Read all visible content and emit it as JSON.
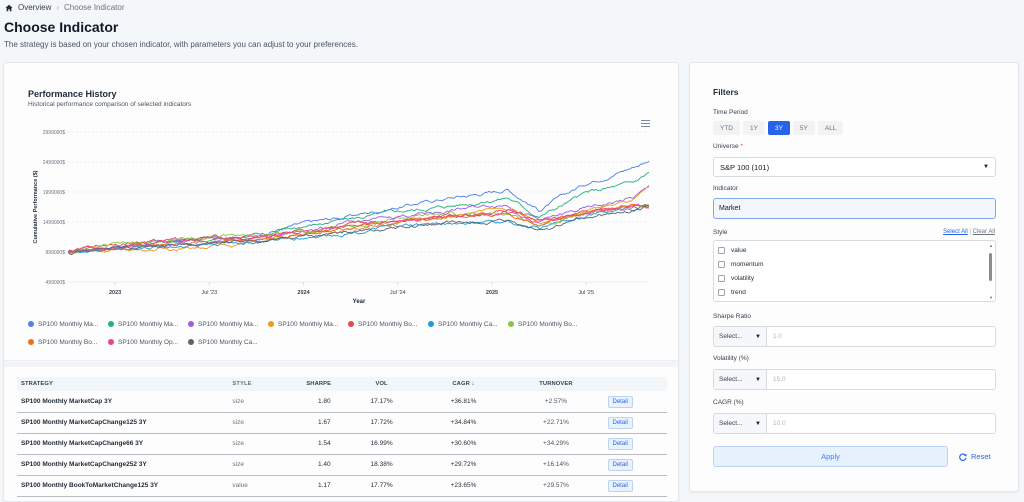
{
  "breadcrumb": {
    "home": "Overview",
    "current": "Choose Indicator"
  },
  "page": {
    "title": "Choose Indicator",
    "subtitle": "The strategy is based on your chosen indicator, with parameters you can adjust to your preferences."
  },
  "chart": {
    "title": "Performance History",
    "subtitle": "Historical performance comparison of selected indicators",
    "menu_icon": "hamburger-menu-icon"
  },
  "chart_data": {
    "type": "line",
    "title": "Performance History",
    "subtitle": "Historical performance comparison of selected indicators",
    "xlabel": "Year",
    "ylabel": "Cumulative Performance ($)",
    "x_ticks": [
      "2023",
      "Jul '23",
      "2024",
      "Jul '24",
      "2025",
      "Jul '25"
    ],
    "y_ticks": [
      "2999000$",
      "2499000$",
      "1999000$",
      "1499000$",
      "999000$",
      "499000$"
    ],
    "ylim": [
      499000,
      2999000
    ],
    "xlim": [
      "2022-10",
      "2025-11"
    ],
    "grid": true,
    "legend_position": "bottom",
    "x_months": [
      "2022-10",
      "2023-01",
      "2023-04",
      "2023-07",
      "2023-10",
      "2024-01",
      "2024-04",
      "2024-07",
      "2024-10",
      "2025-01",
      "2025-02",
      "2025-04",
      "2025-07",
      "2025-10",
      "2025-11"
    ],
    "series": [
      {
        "name": "SP100 Monthly Ma...",
        "color": "#4e7fec",
        "values": [
          999000,
          1090000,
          1160000,
          1230000,
          1300000,
          1470000,
          1600000,
          1750000,
          1890000,
          2000000,
          2050000,
          1700000,
          2150000,
          2420000,
          2530000
        ]
      },
      {
        "name": "SP100 Monthly Ma...",
        "color": "#22b07d",
        "values": [
          999000,
          1080000,
          1140000,
          1200000,
          1260000,
          1430000,
          1550000,
          1670000,
          1760000,
          1860000,
          1910000,
          1590000,
          1980000,
          2150000,
          2330000
        ]
      },
      {
        "name": "SP100 Monthly Ma...",
        "color": "#9b5de5",
        "values": [
          999000,
          1070000,
          1110000,
          1170000,
          1200000,
          1350000,
          1470000,
          1600000,
          1680000,
          1780000,
          1800000,
          1520000,
          1720000,
          1900000,
          2070000
        ]
      },
      {
        "name": "SP100 Monthly Ma...",
        "color": "#ef9a1f",
        "values": [
          999000,
          1040000,
          1050000,
          1100000,
          1150000,
          1280000,
          1400000,
          1500000,
          1600000,
          1700000,
          1720000,
          1490000,
          1700000,
          1850000,
          2050000
        ]
      },
      {
        "name": "SP100 Monthly Bo...",
        "color": "#e5484d",
        "values": [
          999000,
          1150000,
          1180000,
          1240000,
          1260000,
          1330000,
          1420000,
          1540000,
          1620000,
          1650000,
          1700000,
          1500000,
          1650000,
          1760000,
          1760000
        ]
      },
      {
        "name": "SP100 Monthly Ca...",
        "color": "#1e9ad6",
        "values": [
          999000,
          1050000,
          1080000,
          1140000,
          1170000,
          1240000,
          1330000,
          1420000,
          1480000,
          1490000,
          1500000,
          1380000,
          1620000,
          1730000,
          1780000
        ]
      },
      {
        "name": "SP100 Monthly Bo...",
        "color": "#8cc63f",
        "values": [
          999000,
          1110000,
          1170000,
          1260000,
          1280000,
          1350000,
          1440000,
          1560000,
          1620000,
          1620000,
          1640000,
          1460000,
          1650000,
          1760000,
          1770000
        ]
      },
      {
        "name": "SP100 Monthly Bo...",
        "color": "#f06d1f",
        "values": [
          999000,
          1100000,
          1130000,
          1190000,
          1200000,
          1300000,
          1380000,
          1500000,
          1570000,
          1600000,
          1650000,
          1470000,
          1680000,
          1770000,
          1760000
        ]
      },
      {
        "name": "SP100 Monthly Op...",
        "color": "#e84393",
        "values": [
          999000,
          1120000,
          1160000,
          1230000,
          1250000,
          1340000,
          1420000,
          1530000,
          1600000,
          1620000,
          1660000,
          1480000,
          1660000,
          1750000,
          1720000
        ]
      },
      {
        "name": "SP100 Monthly Ca...",
        "color": "#5b6472",
        "values": [
          999000,
          1060000,
          1090000,
          1130000,
          1160000,
          1250000,
          1320000,
          1410000,
          1470000,
          1480000,
          1490000,
          1360000,
          1560000,
          1690000,
          1750000
        ]
      }
    ]
  },
  "table": {
    "headers": {
      "strategy": "STRATEGY",
      "style": "STYLE",
      "sharpe": "SHARPE",
      "vol": "VOL",
      "cagr": "CAGR ↓",
      "turnover": "TURNOVER"
    },
    "rows": [
      {
        "strategy": "SP100 Monthly MarketCap 3Y",
        "style": "size",
        "sharpe": "1.80",
        "vol": "17.17%",
        "cagr": "+36.81%",
        "turnover": "+2.57%",
        "action": "Detail"
      },
      {
        "strategy": "SP100 Monthly MarketCapChange125 3Y",
        "style": "size",
        "sharpe": "1.67",
        "vol": "17.72%",
        "cagr": "+34.84%",
        "turnover": "+22.71%",
        "action": "Detail"
      },
      {
        "strategy": "SP100 Monthly MarketCapChange66 3Y",
        "style": "size",
        "sharpe": "1.54",
        "vol": "16.99%",
        "cagr": "+30.60%",
        "turnover": "+34.29%",
        "action": "Detail"
      },
      {
        "strategy": "SP100 Monthly MarketCapChange252 3Y",
        "style": "size",
        "sharpe": "1.40",
        "vol": "18.38%",
        "cagr": "+29.72%",
        "turnover": "+16.14%",
        "action": "Detail"
      },
      {
        "strategy": "SP100 Monthly BookToMarketChange125 3Y",
        "style": "value",
        "sharpe": "1.17",
        "vol": "17.77%",
        "cagr": "+23.65%",
        "turnover": "+29.57%",
        "action": "Detail"
      }
    ]
  },
  "filters": {
    "title": "Filters",
    "time_period": {
      "label": "Time Period",
      "options": [
        "YTD",
        "1Y",
        "3Y",
        "5Y",
        "ALL"
      ],
      "selected": "3Y"
    },
    "universe": {
      "label": "Universe",
      "required_mark": "*",
      "value": "S&P 100 (101)"
    },
    "indicator": {
      "label": "Indicator",
      "value": "Market"
    },
    "style": {
      "label": "Style",
      "select_all": "Select All",
      "separator": "|",
      "clear_all": "Clear All",
      "options": [
        "value",
        "momentum",
        "volatility",
        "trend"
      ]
    },
    "sharpe": {
      "label": "Sharpe Ratio",
      "operator": "Select...",
      "placeholder": "1.0"
    },
    "volatility": {
      "label": "Volatility (%)",
      "operator": "Select...",
      "placeholder": "15.0"
    },
    "cagr": {
      "label": "CAGR (%)",
      "operator": "Select...",
      "placeholder": "10.0"
    },
    "apply_label": "Apply",
    "reset_label": "Reset"
  }
}
